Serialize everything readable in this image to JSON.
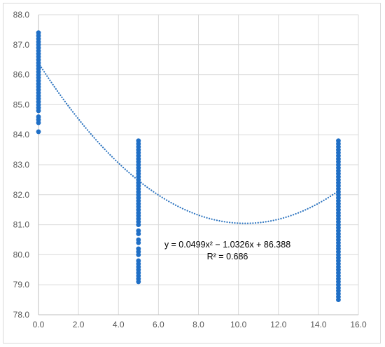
{
  "chart_data": {
    "type": "scatter",
    "xlim": [
      0,
      16
    ],
    "ylim": [
      78,
      88
    ],
    "x_ticks": [
      "0.0",
      "2.0",
      "4.0",
      "6.0",
      "8.0",
      "10.0",
      "12.0",
      "14.0",
      "16.0"
    ],
    "y_ticks": [
      "78.0",
      "79.0",
      "80.0",
      "81.0",
      "82.0",
      "83.0",
      "84.0",
      "85.0",
      "86.0",
      "87.0",
      "88.0"
    ],
    "grid": true,
    "legend": "none",
    "marker_color": "#1f6fc6",
    "trendline_color": "#2e75c0",
    "trendline": {
      "type": "polynomial-2",
      "coefficients": {
        "a": 0.0499,
        "b": -1.0326,
        "c": 86.388
      },
      "equation_label": "y = 0.0499x² − 1.0326x + 86.388",
      "r2_label": "R² = 0.686"
    },
    "series": [
      {
        "points": [
          [
            0,
            87.4
          ],
          [
            0,
            87.3
          ],
          [
            0,
            87.2
          ],
          [
            0,
            87.1
          ],
          [
            0,
            87.0
          ],
          [
            0,
            86.9
          ],
          [
            0,
            86.8
          ],
          [
            0,
            86.7
          ],
          [
            0,
            86.6
          ],
          [
            0,
            86.5
          ],
          [
            0,
            86.4
          ],
          [
            0,
            86.3
          ],
          [
            0,
            86.2
          ],
          [
            0,
            86.1
          ],
          [
            0,
            86.0
          ],
          [
            0,
            85.9
          ],
          [
            0,
            85.8
          ],
          [
            0,
            85.7
          ],
          [
            0,
            85.6
          ],
          [
            0,
            85.5
          ],
          [
            0,
            85.4
          ],
          [
            0,
            85.3
          ],
          [
            0,
            85.2
          ],
          [
            0,
            85.1
          ],
          [
            0,
            85.0
          ],
          [
            0,
            84.9
          ],
          [
            0,
            84.8
          ],
          [
            0,
            84.6
          ],
          [
            0,
            84.5
          ],
          [
            0,
            84.4
          ],
          [
            0,
            84.1
          ],
          [
            5,
            83.8
          ],
          [
            5,
            83.7
          ],
          [
            5,
            83.6
          ],
          [
            5,
            83.5
          ],
          [
            5,
            83.4
          ],
          [
            5,
            83.3
          ],
          [
            5,
            83.2
          ],
          [
            5,
            83.1
          ],
          [
            5,
            83.0
          ],
          [
            5,
            82.9
          ],
          [
            5,
            82.8
          ],
          [
            5,
            82.7
          ],
          [
            5,
            82.6
          ],
          [
            5,
            82.5
          ],
          [
            5,
            82.4
          ],
          [
            5,
            82.3
          ],
          [
            5,
            82.2
          ],
          [
            5,
            82.1
          ],
          [
            5,
            82.0
          ],
          [
            5,
            81.9
          ],
          [
            5,
            81.8
          ],
          [
            5,
            81.7
          ],
          [
            5,
            81.6
          ],
          [
            5,
            81.5
          ],
          [
            5,
            81.4
          ],
          [
            5,
            81.3
          ],
          [
            5,
            81.2
          ],
          [
            5,
            81.1
          ],
          [
            5,
            81.0
          ],
          [
            5,
            80.8
          ],
          [
            5,
            80.7
          ],
          [
            5,
            80.5
          ],
          [
            5,
            80.4
          ],
          [
            5,
            80.2
          ],
          [
            5,
            80.1
          ],
          [
            5,
            80.0
          ],
          [
            5,
            79.8
          ],
          [
            5,
            79.7
          ],
          [
            5,
            79.6
          ],
          [
            5,
            79.5
          ],
          [
            5,
            79.4
          ],
          [
            5,
            79.3
          ],
          [
            5,
            79.2
          ],
          [
            5,
            79.1
          ],
          [
            15,
            83.8
          ],
          [
            15,
            83.7
          ],
          [
            15,
            83.6
          ],
          [
            15,
            83.5
          ],
          [
            15,
            83.4
          ],
          [
            15,
            83.3
          ],
          [
            15,
            83.2
          ],
          [
            15,
            83.1
          ],
          [
            15,
            83.0
          ],
          [
            15,
            82.9
          ],
          [
            15,
            82.8
          ],
          [
            15,
            82.7
          ],
          [
            15,
            82.6
          ],
          [
            15,
            82.5
          ],
          [
            15,
            82.4
          ],
          [
            15,
            82.3
          ],
          [
            15,
            82.2
          ],
          [
            15,
            82.1
          ],
          [
            15,
            82.0
          ],
          [
            15,
            81.9
          ],
          [
            15,
            81.8
          ],
          [
            15,
            81.7
          ],
          [
            15,
            81.6
          ],
          [
            15,
            81.5
          ],
          [
            15,
            81.4
          ],
          [
            15,
            81.3
          ],
          [
            15,
            81.2
          ],
          [
            15,
            81.1
          ],
          [
            15,
            81.0
          ],
          [
            15,
            80.9
          ],
          [
            15,
            80.8
          ],
          [
            15,
            80.7
          ],
          [
            15,
            80.6
          ],
          [
            15,
            80.5
          ],
          [
            15,
            80.4
          ],
          [
            15,
            80.3
          ],
          [
            15,
            80.2
          ],
          [
            15,
            80.1
          ],
          [
            15,
            80.0
          ],
          [
            15,
            79.9
          ],
          [
            15,
            79.8
          ],
          [
            15,
            79.7
          ],
          [
            15,
            79.6
          ],
          [
            15,
            79.5
          ],
          [
            15,
            79.4
          ],
          [
            15,
            79.3
          ],
          [
            15,
            79.2
          ],
          [
            15,
            79.1
          ],
          [
            15,
            79.0
          ],
          [
            15,
            78.9
          ],
          [
            15,
            78.8
          ],
          [
            15,
            78.7
          ],
          [
            15,
            78.6
          ],
          [
            15,
            78.5
          ]
        ]
      }
    ]
  }
}
